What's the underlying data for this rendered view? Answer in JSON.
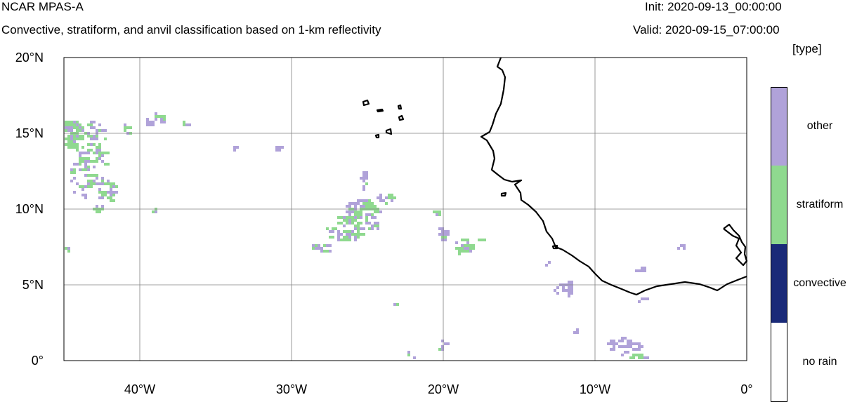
{
  "header": {
    "title": "NCAR MPAS-A",
    "subtitle": "Convective, stratiform, and anvil classification based on 1-km reflectivity",
    "init": "Init: 2020-09-13_00:00:00",
    "valid": "Valid: 2020-09-15_07:00:00",
    "units": "[type]"
  },
  "map": {
    "lon_range": [
      -45,
      0
    ],
    "lat_range": [
      0,
      20
    ],
    "gridlines": true,
    "x_ticks": [
      {
        "lon": -40,
        "label": "40°W"
      },
      {
        "lon": -30,
        "label": "30°W"
      },
      {
        "lon": -20,
        "label": "20°W"
      },
      {
        "lon": -10,
        "label": "10°W"
      },
      {
        "lon": 0,
        "label": "0°"
      }
    ],
    "y_ticks": [
      {
        "lat": 20,
        "label": "20°N"
      },
      {
        "lat": 15,
        "label": "15°N"
      },
      {
        "lat": 10,
        "label": "10°N"
      },
      {
        "lat": 5,
        "label": "5°N"
      },
      {
        "lat": 0,
        "label": "0°"
      }
    ]
  },
  "colorbar": {
    "categories": [
      {
        "label": "other",
        "color": "#b0a2d9"
      },
      {
        "label": "stratiform",
        "color": "#8fd98f"
      },
      {
        "label": "convective",
        "color": "#1a2a78"
      },
      {
        "label": "no rain",
        "color": "#ffffff"
      }
    ]
  },
  "colors": {
    "other": "#b0a2d9",
    "stratiform": "#8fd98f",
    "coast": "#000000",
    "grid": "#808080"
  }
}
